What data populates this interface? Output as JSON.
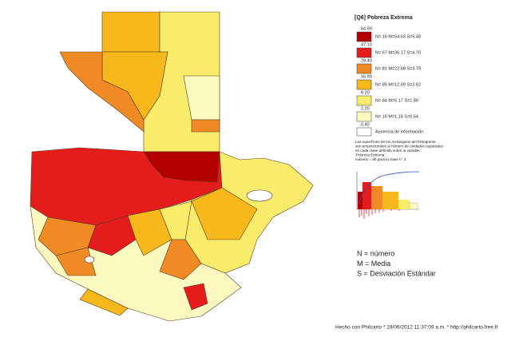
{
  "legend": {
    "title": "[Q6] Pobreza Extrema",
    "breaks": [
      "64.90",
      "47.10",
      "29.40",
      "16.90",
      "8.20",
      "2.20",
      "0.40"
    ],
    "classes": [
      {
        "label": "N= 16  M=54.63  S=5.48",
        "color": "#b30000"
      },
      {
        "label": "N= 67  M=36.17  S=4.70",
        "color": "#e41c1c"
      },
      {
        "label": "N= 81  M=22.68  S=3.79",
        "color": "#f08a24"
      },
      {
        "label": "N= 85  M=12.09  S=2.62",
        "color": "#f6b81a"
      },
      {
        "label": "N= 64  M=5.17  S=1.80",
        "color": "#f9ec6a"
      },
      {
        "label": "N= 16  M=1.18  S=0.54",
        "color": "#fcf9c0"
      }
    ],
    "missing": "Ausencia de información"
  },
  "note": [
    "Las superficies de los rectángulos del histograma",
    "son proporcionales al número de unidades espaciales",
    "en cada clase definida sobre la variable :",
    "'Pobreza Extrema'",
    "máximo = 85 para la clase n° 3"
  ],
  "key": [
    "N = número",
    "M = Media",
    "S = Desviación Estándar"
  ],
  "footer": "Hecho con Philcarto * 19/06/2012 11:37:09 a.m. * http://philcarto.free.fr"
}
